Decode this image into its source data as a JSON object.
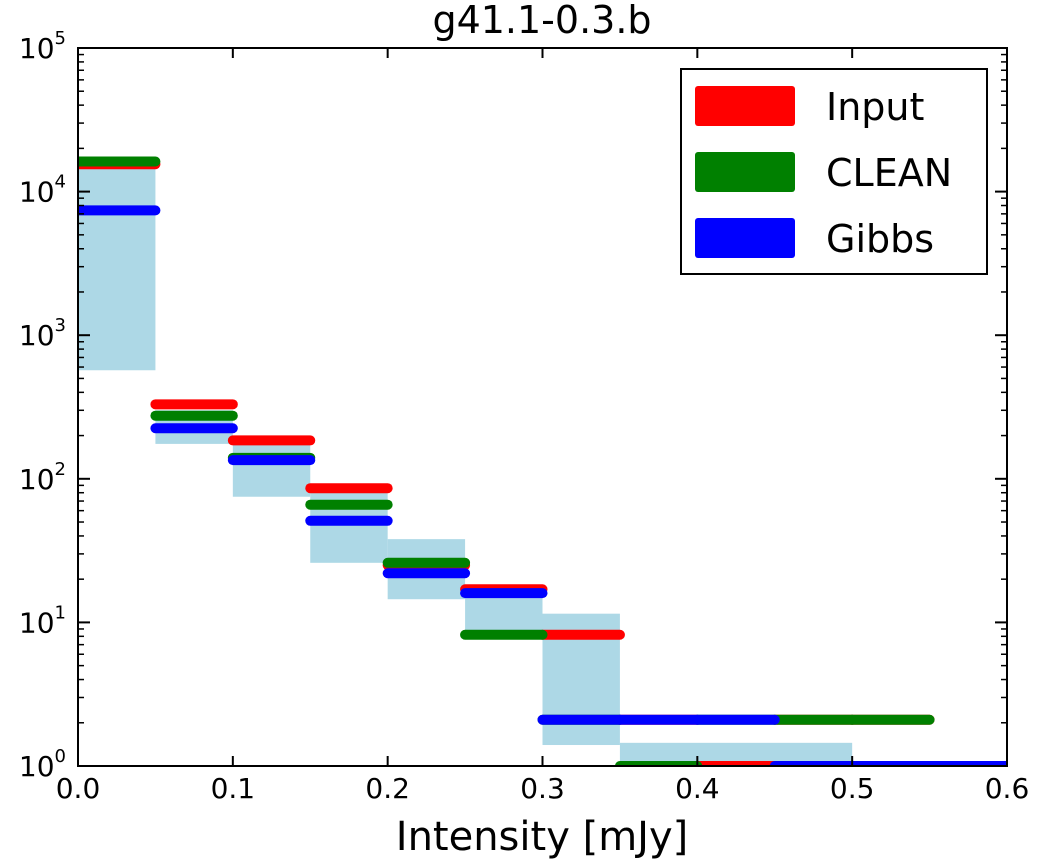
{
  "chart_data": {
    "type": "histogram",
    "title": "g41.1-0.3.b",
    "xlabel": "Intensity [mJy]",
    "ylabel": "",
    "xlim": [
      0.0,
      0.6
    ],
    "ylim": [
      1,
      100000
    ],
    "yscale": "log",
    "x_ticks": [
      "0.0",
      "0.1",
      "0.2",
      "0.3",
      "0.4",
      "0.5",
      "0.6"
    ],
    "y_ticks": [
      {
        "base": "10",
        "exp": "0"
      },
      {
        "base": "10",
        "exp": "1"
      },
      {
        "base": "10",
        "exp": "2"
      },
      {
        "base": "10",
        "exp": "3"
      },
      {
        "base": "10",
        "exp": "4"
      },
      {
        "base": "10",
        "exp": "5"
      }
    ],
    "legend": {
      "position": "top-right",
      "entries": [
        {
          "label": "Input",
          "color": "#ff0000"
        },
        {
          "label": "CLEAN",
          "color": "#008000"
        },
        {
          "label": "Gibbs",
          "color": "#0000ff"
        }
      ]
    },
    "uncertainty_band": {
      "color": "#add8e6",
      "bins": [
        {
          "x0": 0.0,
          "x1": 0.05,
          "low": 570,
          "high": 15000
        },
        {
          "x0": 0.05,
          "x1": 0.1,
          "low": 175,
          "high": 300
        },
        {
          "x0": 0.1,
          "x1": 0.15,
          "low": 75,
          "high": 180
        },
        {
          "x0": 0.15,
          "x1": 0.2,
          "low": 26,
          "high": 80
        },
        {
          "x0": 0.2,
          "x1": 0.25,
          "low": 14.5,
          "high": 38
        },
        {
          "x0": 0.25,
          "x1": 0.3,
          "low": 8,
          "high": 18
        },
        {
          "x0": 0.3,
          "x1": 0.35,
          "low": 1.4,
          "high": 11.5
        },
        {
          "x0": 0.35,
          "x1": 0.5,
          "low": 1.0,
          "high": 1.45
        }
      ]
    },
    "series": [
      {
        "name": "Input",
        "color": "#ff0000",
        "bins": [
          {
            "x0": 0.0,
            "x1": 0.05,
            "value": 15500
          },
          {
            "x0": 0.05,
            "x1": 0.1,
            "value": 330
          },
          {
            "x0": 0.1,
            "x1": 0.15,
            "value": 185
          },
          {
            "x0": 0.15,
            "x1": 0.2,
            "value": 86
          },
          {
            "x0": 0.2,
            "x1": 0.25,
            "value": 25
          },
          {
            "x0": 0.25,
            "x1": 0.3,
            "value": 17
          },
          {
            "x0": 0.3,
            "x1": 0.35,
            "value": 8.2
          },
          {
            "x0": 0.35,
            "x1": 0.4,
            "value": 2.1
          },
          {
            "x0": 0.4,
            "x1": 0.45,
            "value": 1.0
          },
          {
            "x0": 0.45,
            "x1": 0.5,
            "value": 2.1
          },
          {
            "x0": 0.5,
            "x1": 0.55,
            "value": 2.1
          }
        ]
      },
      {
        "name": "CLEAN",
        "color": "#008000",
        "bins": [
          {
            "x0": 0.0,
            "x1": 0.05,
            "value": 16200
          },
          {
            "x0": 0.05,
            "x1": 0.1,
            "value": 275
          },
          {
            "x0": 0.1,
            "x1": 0.15,
            "value": 140
          },
          {
            "x0": 0.15,
            "x1": 0.2,
            "value": 66
          },
          {
            "x0": 0.2,
            "x1": 0.25,
            "value": 26
          },
          {
            "x0": 0.25,
            "x1": 0.3,
            "value": 8.2
          },
          {
            "x0": 0.3,
            "x1": 0.35,
            "value": 2.1
          },
          {
            "x0": 0.35,
            "x1": 0.4,
            "value": 1.0
          },
          {
            "x0": 0.4,
            "x1": 0.45,
            "value": 2.1
          },
          {
            "x0": 0.45,
            "x1": 0.5,
            "value": 2.1
          },
          {
            "x0": 0.5,
            "x1": 0.55,
            "value": 2.1
          }
        ]
      },
      {
        "name": "Gibbs",
        "color": "#0000ff",
        "bins": [
          {
            "x0": 0.0,
            "x1": 0.05,
            "value": 7400
          },
          {
            "x0": 0.05,
            "x1": 0.1,
            "value": 225
          },
          {
            "x0": 0.1,
            "x1": 0.15,
            "value": 135
          },
          {
            "x0": 0.15,
            "x1": 0.2,
            "value": 51
          },
          {
            "x0": 0.2,
            "x1": 0.25,
            "value": 22
          },
          {
            "x0": 0.25,
            "x1": 0.3,
            "value": 16
          },
          {
            "x0": 0.3,
            "x1": 0.35,
            "value": 2.1
          },
          {
            "x0": 0.35,
            "x1": 0.4,
            "value": 2.1
          },
          {
            "x0": 0.4,
            "x1": 0.45,
            "value": 2.1
          },
          {
            "x0": 0.45,
            "x1": 0.5,
            "value": 1.0
          },
          {
            "x0": 0.5,
            "x1": 0.55,
            "value": 1.0
          },
          {
            "x0": 0.55,
            "x1": 0.6,
            "value": 1.0
          }
        ]
      }
    ]
  }
}
